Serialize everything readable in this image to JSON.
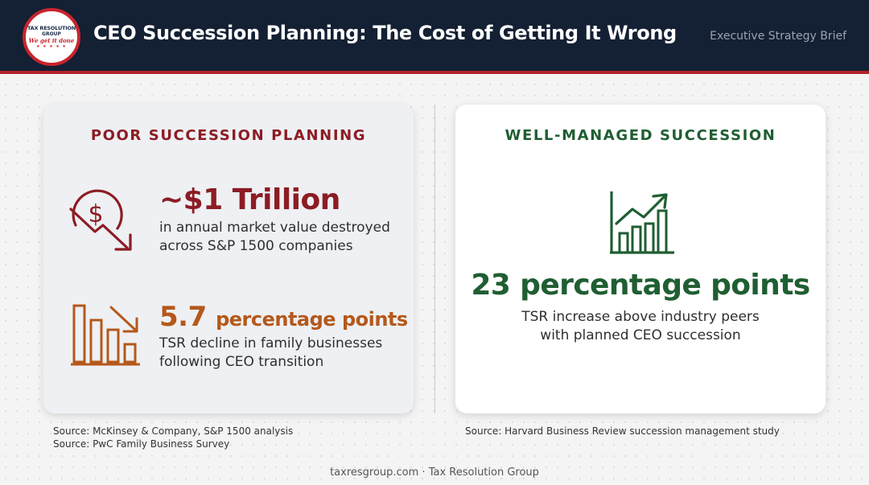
{
  "header": {
    "logo": {
      "line1": "TAX RESOLUTION",
      "line2": "GROUP",
      "tagline": "We get it done",
      "stars": "★ ★ ★ ★ ★"
    },
    "title": "CEO Succession Planning: The Cost of Getting It Wrong",
    "subtitle": "Executive Strategy Brief"
  },
  "left_card": {
    "heading": "POOR SUCCESSION PLANNING",
    "stat1": {
      "icon": "dollar-decline-icon",
      "value": "~$1 Trillion",
      "desc_line1": "in annual market value destroyed",
      "desc_line2": "across S&P 1500 companies"
    },
    "stat2": {
      "icon": "declining-bar-chart-icon",
      "value_number": "5.7",
      "value_unit": "percentage points",
      "desc_line1": "TSR decline in family businesses",
      "desc_line2": "following CEO transition"
    },
    "source_line1": "Source: McKinsey & Company, S&P 1500 analysis",
    "source_line2": "Source: PwC Family Business Survey"
  },
  "right_card": {
    "heading": "WELL-MANAGED SUCCESSION",
    "icon": "growth-chart-icon",
    "value": "23 percentage points",
    "desc_line1": "TSR increase above industry peers",
    "desc_line2": "with planned CEO succession",
    "source": "Source: Harvard Business Review succession management study"
  },
  "footer": "taxresgroup.com · Tax Resolution Group",
  "colors": {
    "header_bg": "#142033",
    "accent_red": "#8c1c24",
    "accent_orange": "#b5581b",
    "accent_green": "#1f5e32"
  }
}
